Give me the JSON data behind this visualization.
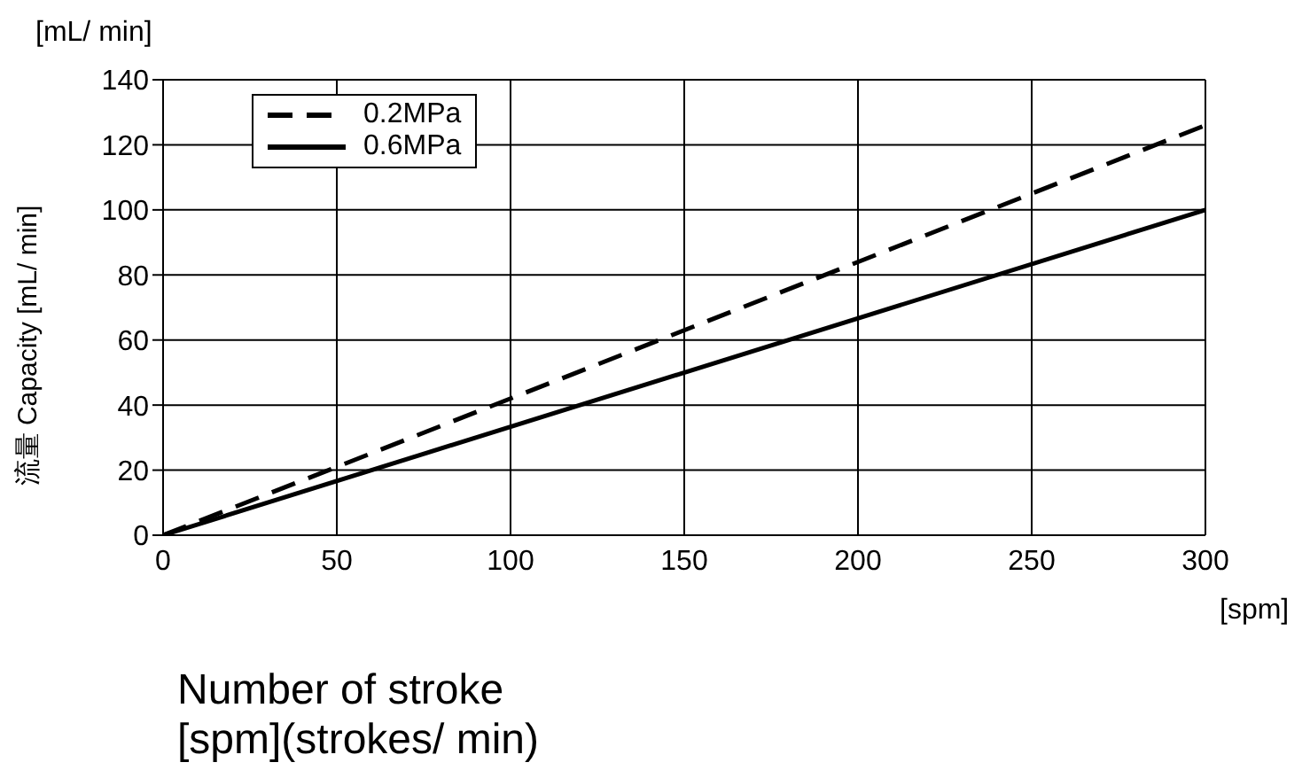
{
  "chart_data": {
    "type": "line",
    "xlabel": "Number of stroke\n[spm](strokes/ min)",
    "ylabel": "流量 Capacity [mL/ min]",
    "annotations": [
      "[mL/ min]",
      "[spm]"
    ],
    "x": [
      0,
      300
    ],
    "series": [
      {
        "name": "0.2MPa",
        "color": "#000000",
        "line_style": "dashed",
        "values": [
          0,
          126
        ]
      },
      {
        "name": "0.6MPa",
        "color": "#000000",
        "line_style": "solid",
        "values": [
          0,
          100
        ]
      }
    ],
    "xlim": [
      0,
      300
    ],
    "xticks": [
      0,
      50,
      100,
      150,
      200,
      250,
      300
    ],
    "ylim": [
      0,
      140
    ],
    "yticks": [
      0,
      20,
      40,
      60,
      80,
      100,
      120,
      140
    ],
    "grid": true,
    "legend": "top left",
    "marker": "none"
  }
}
